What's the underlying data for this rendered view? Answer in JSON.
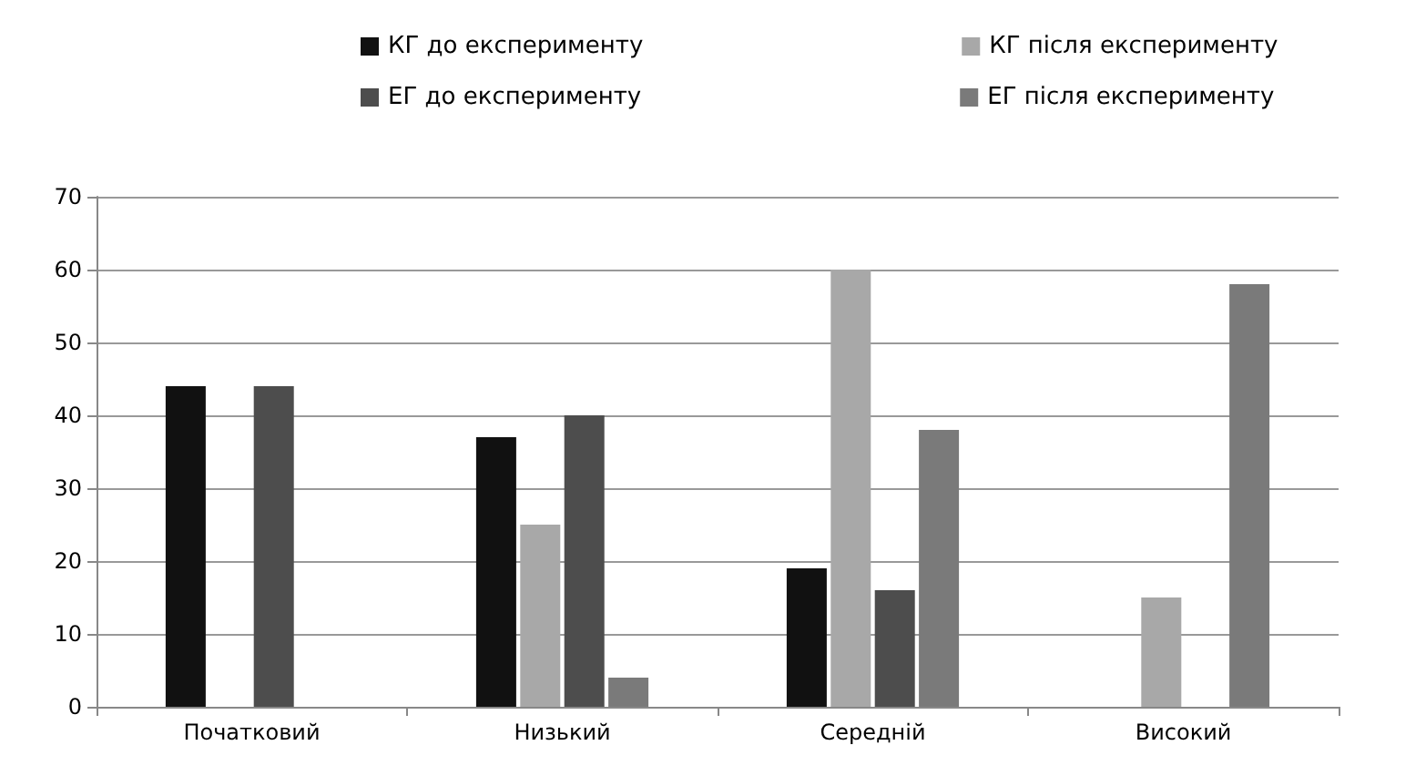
{
  "chart_data": {
    "type": "bar",
    "categories": [
      "Початковий",
      "Низький",
      "Середній",
      "Високий"
    ],
    "series": [
      {
        "name": "КГ до експерименту",
        "color": "#111111",
        "values": [
          44,
          37,
          19,
          0
        ]
      },
      {
        "name": "КГ після експерименту",
        "color": "#a8a8a8",
        "values": [
          0,
          25,
          60,
          15
        ]
      },
      {
        "name": "ЕГ до експерименту",
        "color": "#4d4d4d",
        "values": [
          44,
          40,
          16,
          0
        ]
      },
      {
        "name": "ЕГ після експерименту",
        "color": "#7a7a7a",
        "values": [
          0,
          4,
          38,
          58
        ]
      }
    ],
    "ylim": [
      0,
      70
    ],
    "yticks": [
      0,
      10,
      20,
      30,
      40,
      50,
      60,
      70
    ],
    "grid": "y",
    "legend": "top"
  }
}
